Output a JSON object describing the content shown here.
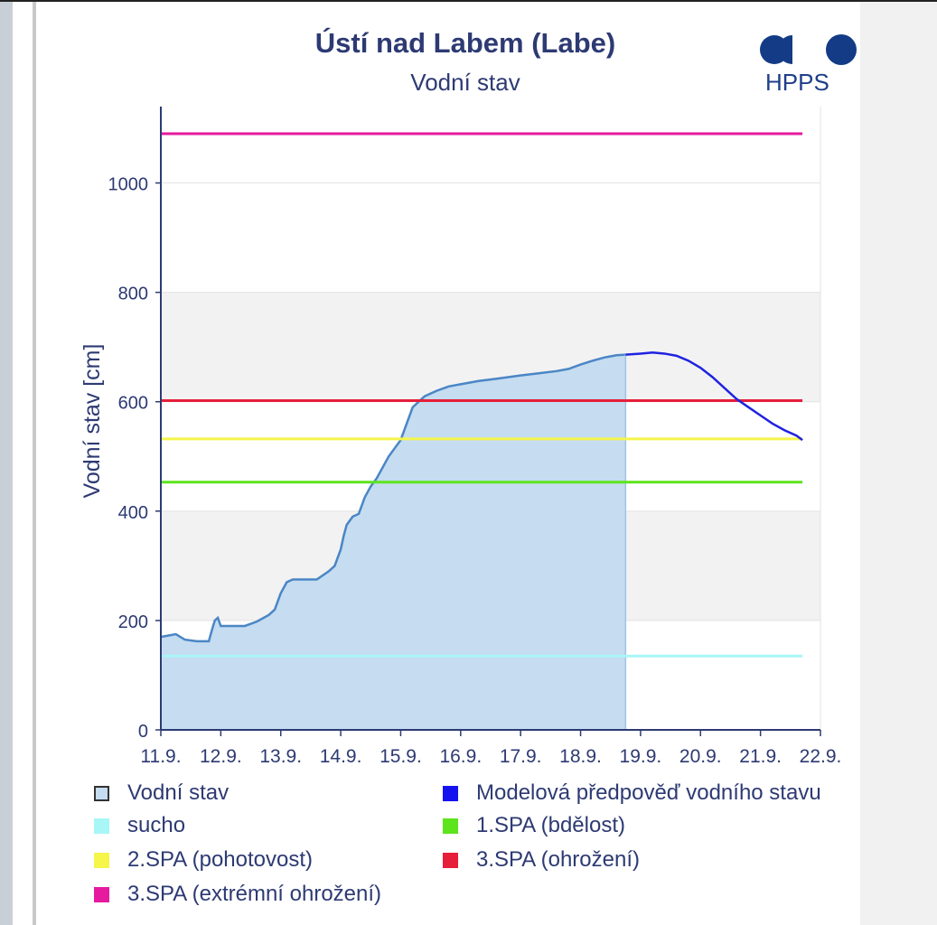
{
  "header": {
    "title": "Ústí nad Labem (Labe)",
    "subtitle": "Vodní stav"
  },
  "logo": {
    "text": "HPPS",
    "color": "#143b85"
  },
  "chart_data": {
    "type": "line",
    "title": "Ústí nad Labem (Labe)",
    "subtitle": "Vodní stav",
    "xlabel": "",
    "ylabel": "Vodní stav [cm]",
    "ylim": [
      0,
      1100
    ],
    "xlim": [
      11.0,
      22.0
    ],
    "x_ticks": [
      11,
      12,
      13,
      14,
      15,
      16,
      17,
      18,
      19,
      20,
      21,
      22
    ],
    "x_tick_labels": [
      "11.9.",
      "12.9.",
      "13.9.",
      "14.9.",
      "15.9.",
      "16.9.",
      "17.9.",
      "18.9.",
      "19.9.",
      "20.9.",
      "21.9.",
      "22.9."
    ],
    "y_ticks": [
      0,
      200,
      400,
      600,
      800,
      1000
    ],
    "y_tick_labels": [
      "0",
      "200",
      "400",
      "600",
      "800",
      "1000"
    ],
    "grid": "horizontal bands",
    "legend_position": "bottom",
    "series": [
      {
        "name": "Vodní stav",
        "kind": "area",
        "color": "#4a86c5",
        "fill": "#c5dcf1",
        "x": [
          11.0,
          11.1,
          11.25,
          11.4,
          11.6,
          11.8,
          11.85,
          11.9,
          11.95,
          12.0,
          12.2,
          12.4,
          12.6,
          12.8,
          12.9,
          13.0,
          13.1,
          13.2,
          13.4,
          13.6,
          13.8,
          13.9,
          14.0,
          14.05,
          14.1,
          14.2,
          14.3,
          14.35,
          14.4,
          14.5,
          14.6,
          14.7,
          14.8,
          14.9,
          15.0,
          15.1,
          15.2,
          15.3,
          15.4,
          15.5,
          15.6,
          15.8,
          16.0,
          16.3,
          16.6,
          17.0,
          17.3,
          17.6,
          17.8,
          18.0,
          18.2,
          18.4,
          18.6,
          18.75
        ],
        "y": [
          170,
          172,
          175,
          165,
          162,
          162,
          182,
          200,
          205,
          190,
          190,
          190,
          198,
          210,
          220,
          250,
          270,
          275,
          275,
          275,
          290,
          300,
          330,
          355,
          375,
          390,
          395,
          410,
          425,
          445,
          460,
          480,
          500,
          515,
          530,
          560,
          590,
          600,
          610,
          615,
          620,
          628,
          632,
          638,
          642,
          648,
          652,
          656,
          660,
          668,
          675,
          681,
          685,
          686
        ]
      },
      {
        "name": "Modelová předpověď vodního stavu",
        "kind": "line",
        "color": "#1f22e0",
        "x": [
          18.75,
          19.0,
          19.2,
          19.4,
          19.6,
          19.8,
          20.0,
          20.2,
          20.4,
          20.6,
          20.8,
          21.0,
          21.2,
          21.4,
          21.6,
          21.7
        ],
        "y": [
          686,
          688,
          690,
          688,
          684,
          675,
          662,
          645,
          625,
          605,
          590,
          575,
          560,
          548,
          538,
          530
        ]
      }
    ],
    "thresholds": [
      {
        "name": "sucho",
        "value": 135,
        "color": "#a8f6f6"
      },
      {
        "name": "1.SPA (bdělost)",
        "value": 453,
        "color": "#5de41d"
      },
      {
        "name": "2.SPA (pohotovost)",
        "value": 532,
        "color": "#f5f54a"
      },
      {
        "name": "3.SPA (ohrožení)",
        "value": 602,
        "color": "#e61e3a"
      },
      {
        "name": "3.SPA (extrémní ohrožení)",
        "value": 1090,
        "color": "#e61a9e"
      }
    ],
    "threshold_x_end": 21.7
  },
  "legend": {
    "items": [
      {
        "label": "Vodní stav",
        "swatch": "#c5dcf1",
        "border": "#333333"
      },
      {
        "label": "Modelová předpověď vodního stavu",
        "swatch": "#1512f0",
        "border": "#1512f0"
      },
      {
        "label": "sucho",
        "swatch": "#a8f6f6",
        "border": "#a8f6f6"
      },
      {
        "label": "1.SPA (bdělost)",
        "swatch": "#5de41d",
        "border": "#5de41d"
      },
      {
        "label": "2.SPA (pohotovost)",
        "swatch": "#f5f54a",
        "border": "#f5f54a"
      },
      {
        "label": "3.SPA (ohrožení)",
        "swatch": "#e61e3a",
        "border": "#e61e3a"
      },
      {
        "label": "3.SPA (extrémní ohrožení)",
        "swatch": "#e61a9e",
        "border": "#e61a9e"
      }
    ]
  }
}
